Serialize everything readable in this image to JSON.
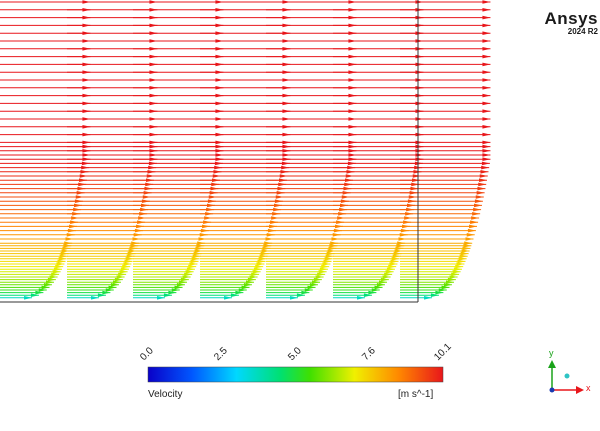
{
  "branding": {
    "name": "Ansys",
    "version": "2024 R2"
  },
  "legend": {
    "title": "Velocity",
    "units": "[m s^-1]",
    "ticks": [
      "0.0",
      "2.5",
      "5.0",
      "7.6",
      "10.1"
    ],
    "min": 0.0,
    "max": 10.1
  },
  "axes_triad": {
    "y_label": "y",
    "x_label": "x",
    "x_color": "#e8161b",
    "y_color": "#1aa31a",
    "origin_color": "#1a3ab0"
  },
  "colors": {
    "max_color": "#e8161b",
    "min_color": "#0a0ad0"
  }
}
